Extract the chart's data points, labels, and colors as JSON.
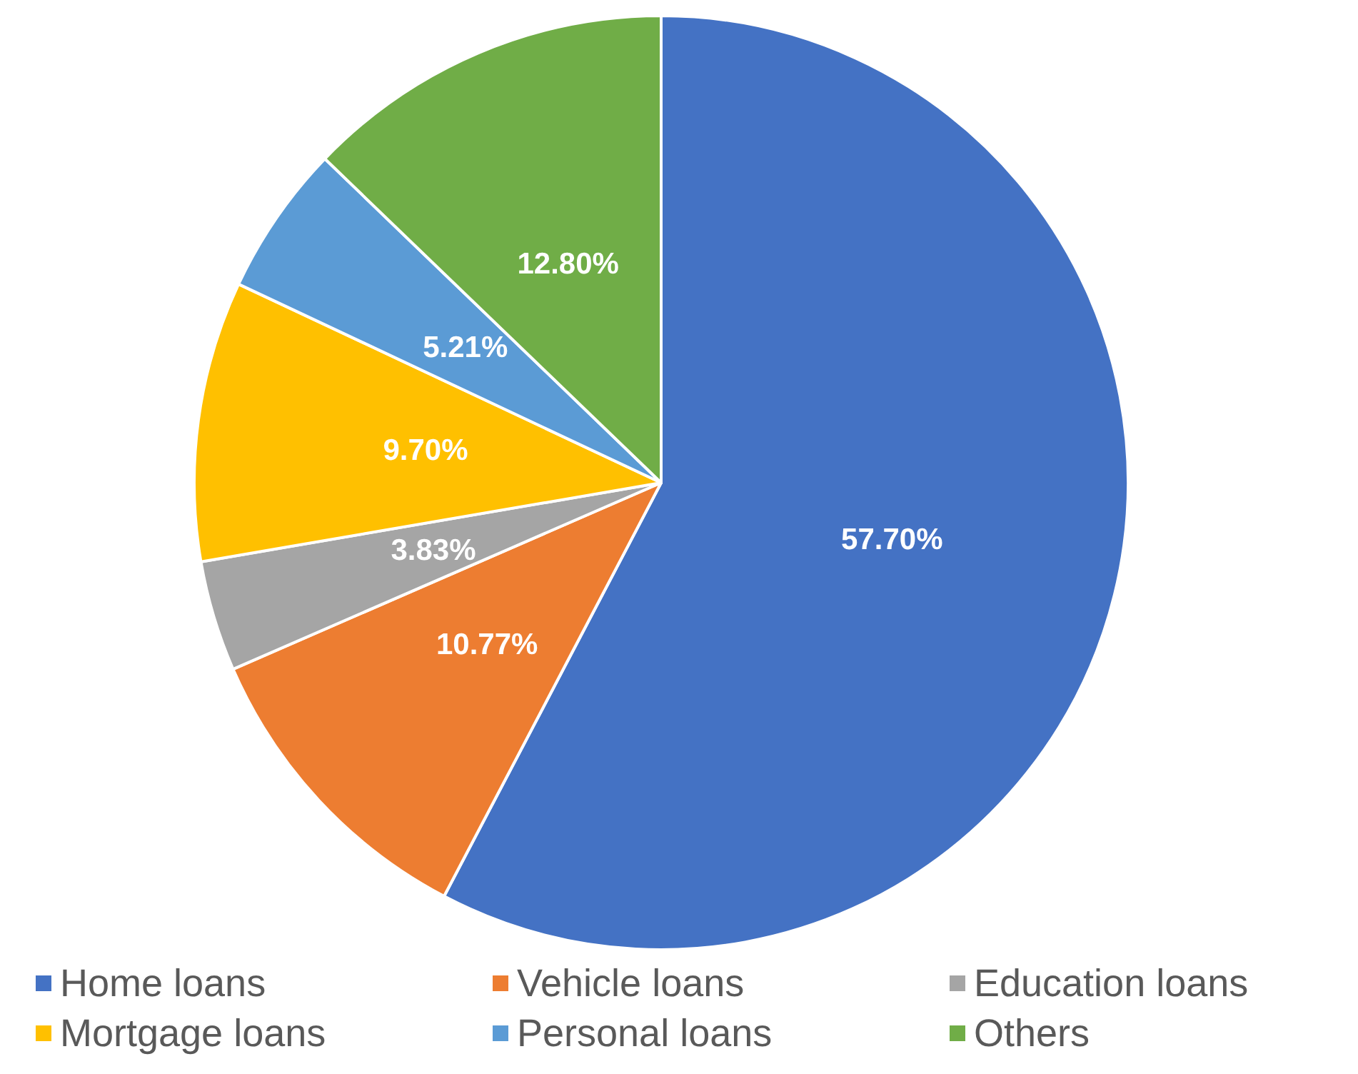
{
  "chart_data": {
    "type": "pie",
    "categories": [
      "Home loans",
      "Vehicle loans",
      "Education loans",
      "Mortgage loans",
      "Personal loans",
      "Others"
    ],
    "values": [
      57.7,
      10.77,
      3.83,
      9.7,
      5.21,
      12.8
    ],
    "colors": [
      "#4472c4",
      "#ed7d31",
      "#a5a5a5",
      "#ffc000",
      "#5b9bd5",
      "#70ad47"
    ],
    "value_labels": [
      "57.70%",
      "10.77%",
      "3.83%",
      "9.70%",
      "5.21%",
      "12.80%"
    ],
    "legend": "bottom"
  }
}
